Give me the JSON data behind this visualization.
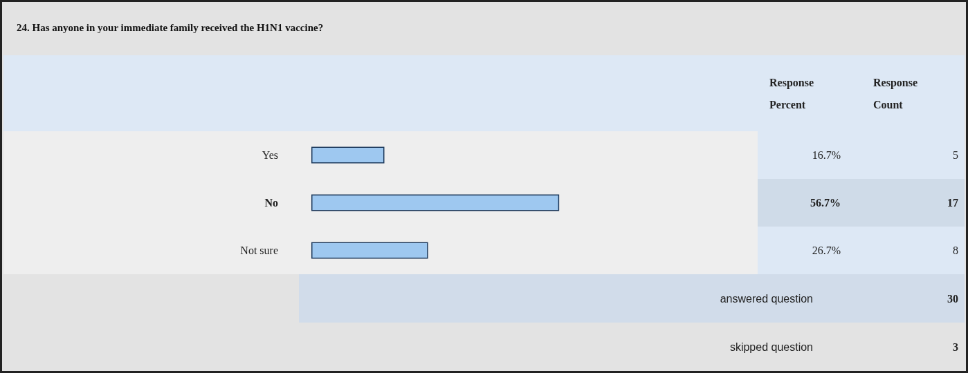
{
  "chart_data": {
    "type": "bar",
    "orientation": "horizontal",
    "title": "24. Has anyone in your immediate family received the H1N1 vaccine?",
    "categories": [
      "Yes",
      "No",
      "Not sure"
    ],
    "values": [
      16.7,
      56.7,
      26.7
    ],
    "value_labels": [
      "16.7%",
      "56.7%",
      "26.7%"
    ],
    "color": "#9ec8f0",
    "tick_labels": "y",
    "annotations": [
      "Response Percent",
      "Response Count",
      "5",
      "17",
      "8",
      "answered question",
      "30",
      "skipped question",
      "3"
    ]
  }
}
